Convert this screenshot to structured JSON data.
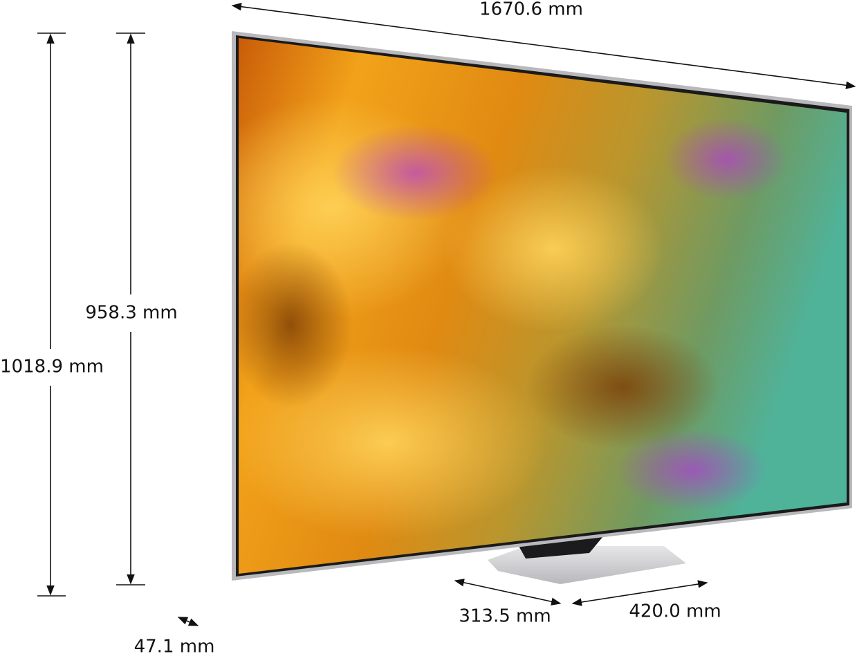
{
  "dimensions": {
    "width": "1670.6 mm",
    "screen_height": "958.3 mm",
    "total_height": "1018.9 mm",
    "stand_depth": "313.5 mm",
    "stand_width": "420.0 mm",
    "panel_depth": "47.1 mm"
  }
}
